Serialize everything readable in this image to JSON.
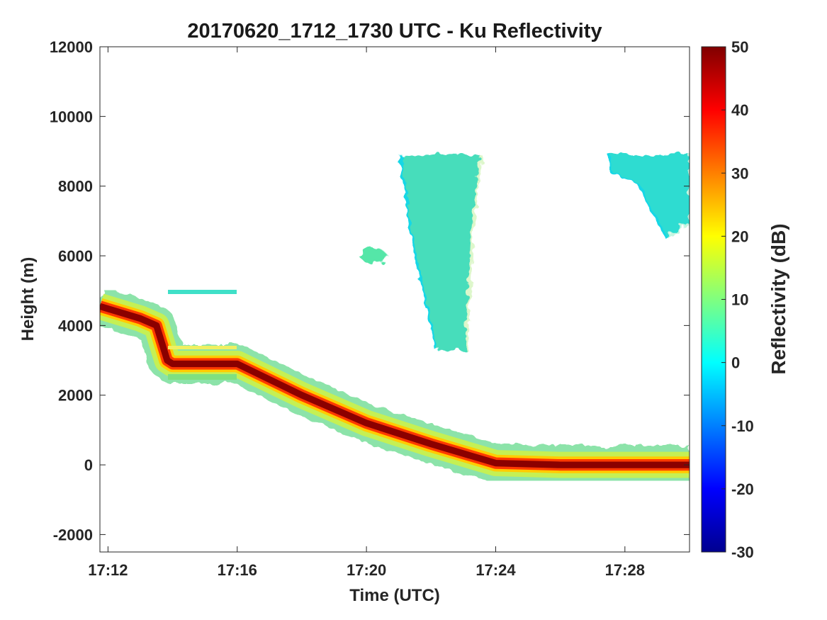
{
  "chart_data": {
    "type": "heatmap",
    "title": "20170620_1712_1730 UTC - Ku Reflectivity",
    "xlabel": "Time (UTC)",
    "ylabel": "Height (m)",
    "xlim": [
      "17:11:45",
      "17:30:00"
    ],
    "ylim": [
      -2500,
      12000
    ],
    "xticks": [
      "17:12",
      "17:16",
      "17:20",
      "17:24",
      "17:28"
    ],
    "yticks": [
      -2000,
      0,
      2000,
      4000,
      6000,
      8000,
      10000,
      12000
    ],
    "grid": false,
    "colorbar": {
      "label": "Reflectivity (dB)",
      "range": [
        -30,
        50
      ],
      "ticks": [
        -30,
        -20,
        -10,
        0,
        10,
        20,
        30,
        40,
        50
      ],
      "colormap": "jet"
    },
    "surface_echo": {
      "description_values": "approximate height of strong surface return (dB ~50)",
      "times": [
        "17:11:45",
        "17:13:00",
        "17:13:30",
        "17:13:50",
        "17:14:00",
        "17:16:00",
        "17:18:00",
        "17:20:00",
        "17:22:00",
        "17:24:00",
        "17:26:00",
        "17:28:00",
        "17:30:00"
      ],
      "heights": [
        4550,
        4200,
        4000,
        3000,
        2900,
        2900,
        2000,
        1200,
        600,
        50,
        0,
        0,
        0
      ]
    },
    "cloud_regions": [
      {
        "time_range": [
          "17:21:00",
          "17:23:30"
        ],
        "height_range": [
          3300,
          8900
        ],
        "reflectivity_range": [
          -5,
          15
        ]
      },
      {
        "time_range": [
          "17:19:45",
          "17:20:40"
        ],
        "height_range": [
          5500,
          6500
        ],
        "reflectivity_range": [
          0,
          8
        ]
      },
      {
        "time_range": [
          "17:27:30",
          "17:30:00"
        ],
        "height_range": [
          6500,
          8900
        ],
        "reflectivity_range": [
          -8,
          5
        ]
      }
    ]
  }
}
